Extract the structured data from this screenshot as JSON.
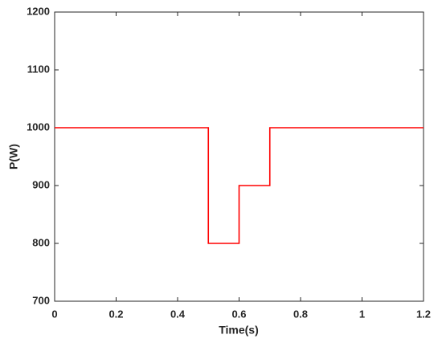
{
  "chart_data": {
    "type": "line",
    "x_label": "Time(s)",
    "y_label": "P(W)",
    "x": [
      0,
      0.5,
      0.5,
      0.6,
      0.6,
      0.7,
      0.7,
      1.2
    ],
    "series": [
      {
        "color": "#ff0000",
        "values": [
          1000,
          1000,
          800,
          800,
          900,
          900,
          1000,
          1000
        ]
      }
    ],
    "xlim": [
      0,
      1.2
    ],
    "xticks": [
      0,
      0.2,
      0.4,
      0.6,
      0.8,
      1,
      1.2
    ],
    "ylim": [
      700,
      1200
    ],
    "yticks": [
      700,
      800,
      900,
      1000,
      1100,
      1200
    ],
    "grid": false
  }
}
